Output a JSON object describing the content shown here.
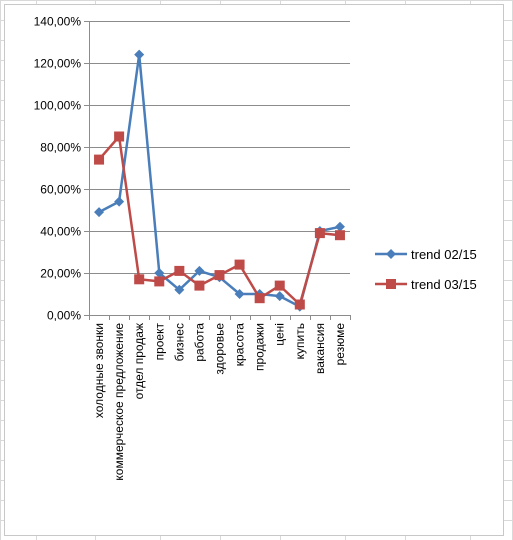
{
  "colors": {
    "series_1": "#4a7ebb",
    "series_2": "#be4b48",
    "gridline": "#8c8c8c",
    "sheet_grid": "#d9d9d9"
  },
  "chart_data": {
    "type": "line",
    "categories": [
      "холодные звонки",
      "коммерческое предложение",
      "отдел продаж",
      "проект",
      "бизнес",
      "работа",
      "здоровье",
      "красота",
      "продажи",
      "цені",
      "купить",
      "вакансия",
      "резюме"
    ],
    "series": [
      {
        "name": "trend 02/15",
        "color": "#4a7ebb",
        "marker": "diamond",
        "values": [
          0.49,
          0.54,
          1.24,
          0.2,
          0.12,
          0.21,
          0.18,
          0.1,
          0.1,
          0.09,
          0.04,
          0.4,
          0.42
        ]
      },
      {
        "name": "trend 03/15",
        "color": "#be4b48",
        "marker": "square",
        "values": [
          0.74,
          0.85,
          0.17,
          0.16,
          0.21,
          0.14,
          0.19,
          0.24,
          0.08,
          0.14,
          0.05,
          0.39,
          0.38
        ]
      }
    ],
    "y_ticks": [
      "0,00%",
      "20,00%",
      "40,00%",
      "60,00%",
      "80,00%",
      "100,00%",
      "120,00%",
      "140,00%"
    ],
    "ylim": [
      0,
      1.4
    ],
    "y_step": 0.2,
    "grid": true,
    "legend_position": "right"
  }
}
